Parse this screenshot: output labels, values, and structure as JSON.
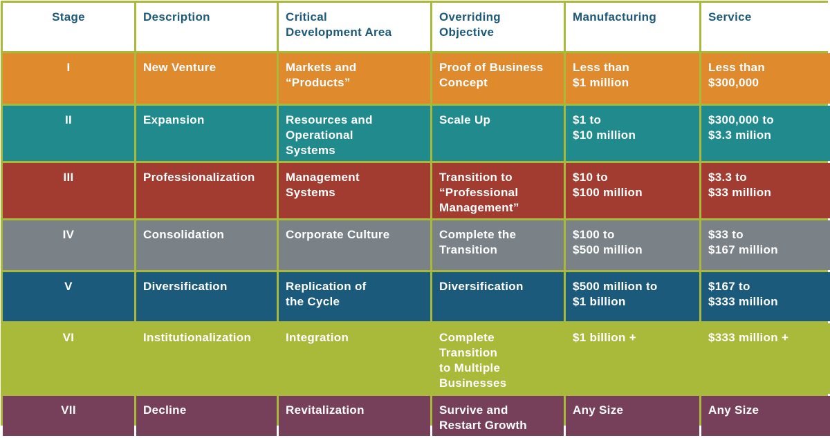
{
  "table": {
    "headers": [
      "Stage",
      "Description",
      "Critical\nDevelopment Area",
      "Overriding\nObjective",
      "Manufacturing",
      "Service"
    ],
    "rows": [
      [
        "I",
        "New Venture",
        "Markets and\n“Products”",
        "Proof of Business\nConcept",
        "Less than\n$1 million",
        "Less than\n$300,000"
      ],
      [
        "II",
        "Expansion",
        "Resources and\nOperational\nSystems",
        "Scale Up",
        "$1 to\n$10 million",
        "$300,000 to\n$3.3 milion"
      ],
      [
        "III",
        "Professionalization",
        "Management\nSystems",
        "Transition to\n“Professional\nManagement”",
        "$10 to\n$100 million",
        "$3.3 to\n$33 million"
      ],
      [
        "IV",
        "Consolidation",
        "Corporate Culture",
        "Complete the\nTransition",
        "$100 to\n$500 million",
        "$33 to\n$167 million"
      ],
      [
        "V",
        "Diversification",
        "Replication of\nthe Cycle",
        "Diversification",
        "$500 million to\n$1 billion",
        "$167 to\n$333 million"
      ],
      [
        "VI",
        "Institutionalization",
        "Integration",
        "Complete\nTransition\nto Multiple\nBusinesses",
        "$1 billion +",
        "$333 million +"
      ],
      [
        "VII",
        "Decline",
        "Revitalization",
        "Survive and\nRestart Growth",
        "Any Size",
        "Any Size"
      ]
    ]
  },
  "colors": {
    "frame": "#a9b93a",
    "header_text": "#1d5a7a",
    "row_colors": [
      "#e08a2e",
      "#208a8c",
      "#a23c31",
      "#7a8287",
      "#1c5a7c",
      "#a9b93a",
      "#763f5a"
    ]
  }
}
